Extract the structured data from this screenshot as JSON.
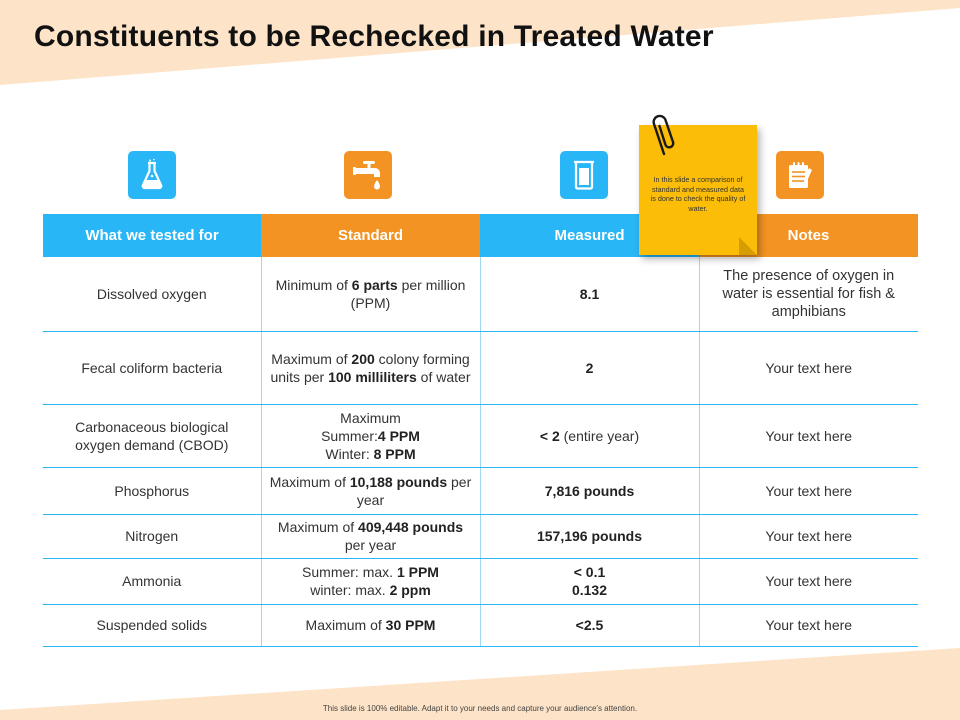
{
  "title": "Constituents to be Rechecked in Treated Water",
  "headers": [
    "What we tested for",
    "Standard",
    "Measured",
    "Notes"
  ],
  "rows": [
    {
      "item": "Dissolved oxygen",
      "standard": [
        [
          "Minimum of ",
          false
        ],
        [
          "6 parts",
          true
        ],
        [
          " per million (PPM)",
          false
        ]
      ],
      "measured": [
        [
          "8.1",
          true
        ]
      ],
      "notes": "The presence of oxygen in water is essential for fish & amphibians"
    },
    {
      "item": "Fecal coliform bacteria",
      "standard": [
        [
          "Maximum of ",
          false
        ],
        [
          "200",
          true
        ],
        [
          " colony forming units per ",
          false
        ],
        [
          "100 milliliters",
          true
        ],
        [
          " of water",
          false
        ]
      ],
      "measured": [
        [
          "2",
          true
        ]
      ],
      "notes": "Your text here"
    },
    {
      "item": "Carbonaceous biological oxygen demand (CBOD)",
      "standard": [
        [
          "Maximum",
          false
        ],
        [
          "\n",
          false
        ],
        [
          "Summer:",
          false
        ],
        [
          "4 PPM",
          true
        ],
        [
          "\n",
          false
        ],
        [
          "Winter: ",
          false
        ],
        [
          "8 PPM",
          true
        ]
      ],
      "measured": [
        [
          "< 2",
          true
        ],
        [
          " (entire year)",
          false
        ]
      ],
      "notes": "Your text here"
    },
    {
      "item": "Phosphorus",
      "standard": [
        [
          "Maximum of ",
          false
        ],
        [
          "10,188 pounds",
          true
        ],
        [
          " per year",
          false
        ]
      ],
      "measured": [
        [
          "7,816 pounds",
          true
        ]
      ],
      "notes": "Your text here"
    },
    {
      "item": "Nitrogen",
      "standard": [
        [
          "Maximum of ",
          false
        ],
        [
          "409,448 pounds",
          true
        ],
        [
          " per year",
          false
        ]
      ],
      "measured": [
        [
          "157,196 pounds",
          true
        ]
      ],
      "notes": "Your text here"
    },
    {
      "item": "Ammonia",
      "standard": [
        [
          "Summer: max. ",
          false
        ],
        [
          "1 PPM",
          true
        ],
        [
          "\n",
          false
        ],
        [
          "winter:     max. ",
          false
        ],
        [
          "2 ppm",
          true
        ]
      ],
      "measured": [
        [
          "< 0.1",
          true
        ],
        [
          "\n",
          false
        ],
        [
          "0.132",
          true
        ]
      ],
      "notes": "Your text here"
    },
    {
      "item": "Suspended solids",
      "standard": [
        [
          "Maximum of ",
          false
        ],
        [
          "30 PPM",
          true
        ]
      ],
      "measured": [
        [
          "<2.5",
          true
        ]
      ],
      "notes": "Your text here"
    }
  ],
  "sticky_note": "In this slide a comparison of standard and measured data is done to check the quality of water.",
  "footer": "This slide is 100% editable. Adapt it to your needs and capture your audience's attention.",
  "colors": {
    "blue": "#29b6f6",
    "orange": "#f39323",
    "sticky": "#fbbd08",
    "peach": "#fde3c7"
  },
  "icons": [
    "flask-icon",
    "faucet-icon",
    "beaker-icon",
    "notepad-icon"
  ]
}
